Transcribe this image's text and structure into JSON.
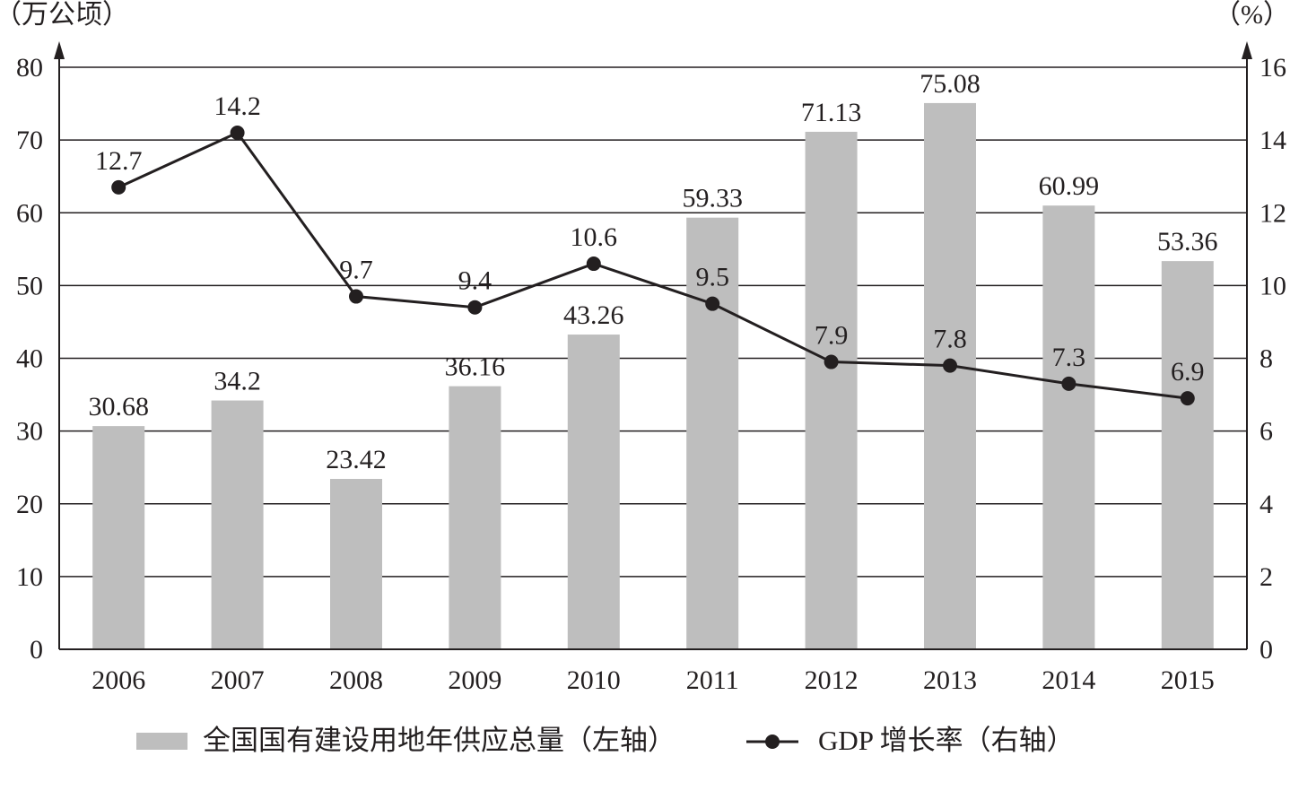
{
  "chart_data": {
    "type": "bar+line",
    "categories": [
      "2006",
      "2007",
      "2008",
      "2009",
      "2010",
      "2011",
      "2012",
      "2013",
      "2014",
      "2015"
    ],
    "series": [
      {
        "name": "全国国有建设用地年供应总量（左轴）",
        "type": "bar",
        "axis": "left",
        "values": [
          30.68,
          34.2,
          23.42,
          36.16,
          43.26,
          59.33,
          71.13,
          75.08,
          60.99,
          53.36
        ],
        "labels": [
          "30.68",
          "34.2",
          "23.42",
          "36.16",
          "43.26",
          "59.33",
          "71.13",
          "75.08",
          "60.99",
          "53.36"
        ]
      },
      {
        "name": "GDP 增长率（右轴）",
        "type": "line",
        "axis": "right",
        "values": [
          12.7,
          14.2,
          9.7,
          9.4,
          10.6,
          9.5,
          7.9,
          7.8,
          7.3,
          6.9
        ],
        "labels": [
          "12.7",
          "14.2",
          "9.7",
          "9.4",
          "10.6",
          "9.5",
          "7.9",
          "7.8",
          "7.3",
          "6.9"
        ]
      }
    ],
    "left_axis": {
      "label": "（万公顷）",
      "ylim": [
        0,
        80
      ],
      "ticks": [
        "0",
        "10",
        "20",
        "30",
        "40",
        "50",
        "60",
        "70",
        "80"
      ]
    },
    "right_axis": {
      "label": "（%）",
      "ylim": [
        0,
        16
      ],
      "ticks": [
        "0",
        "2",
        "4",
        "6",
        "8",
        "10",
        "12",
        "14",
        "16"
      ]
    },
    "grid": true,
    "legend_placement": "bottom",
    "colors": {
      "bar": "#bebebe",
      "line": "#231f20"
    }
  }
}
